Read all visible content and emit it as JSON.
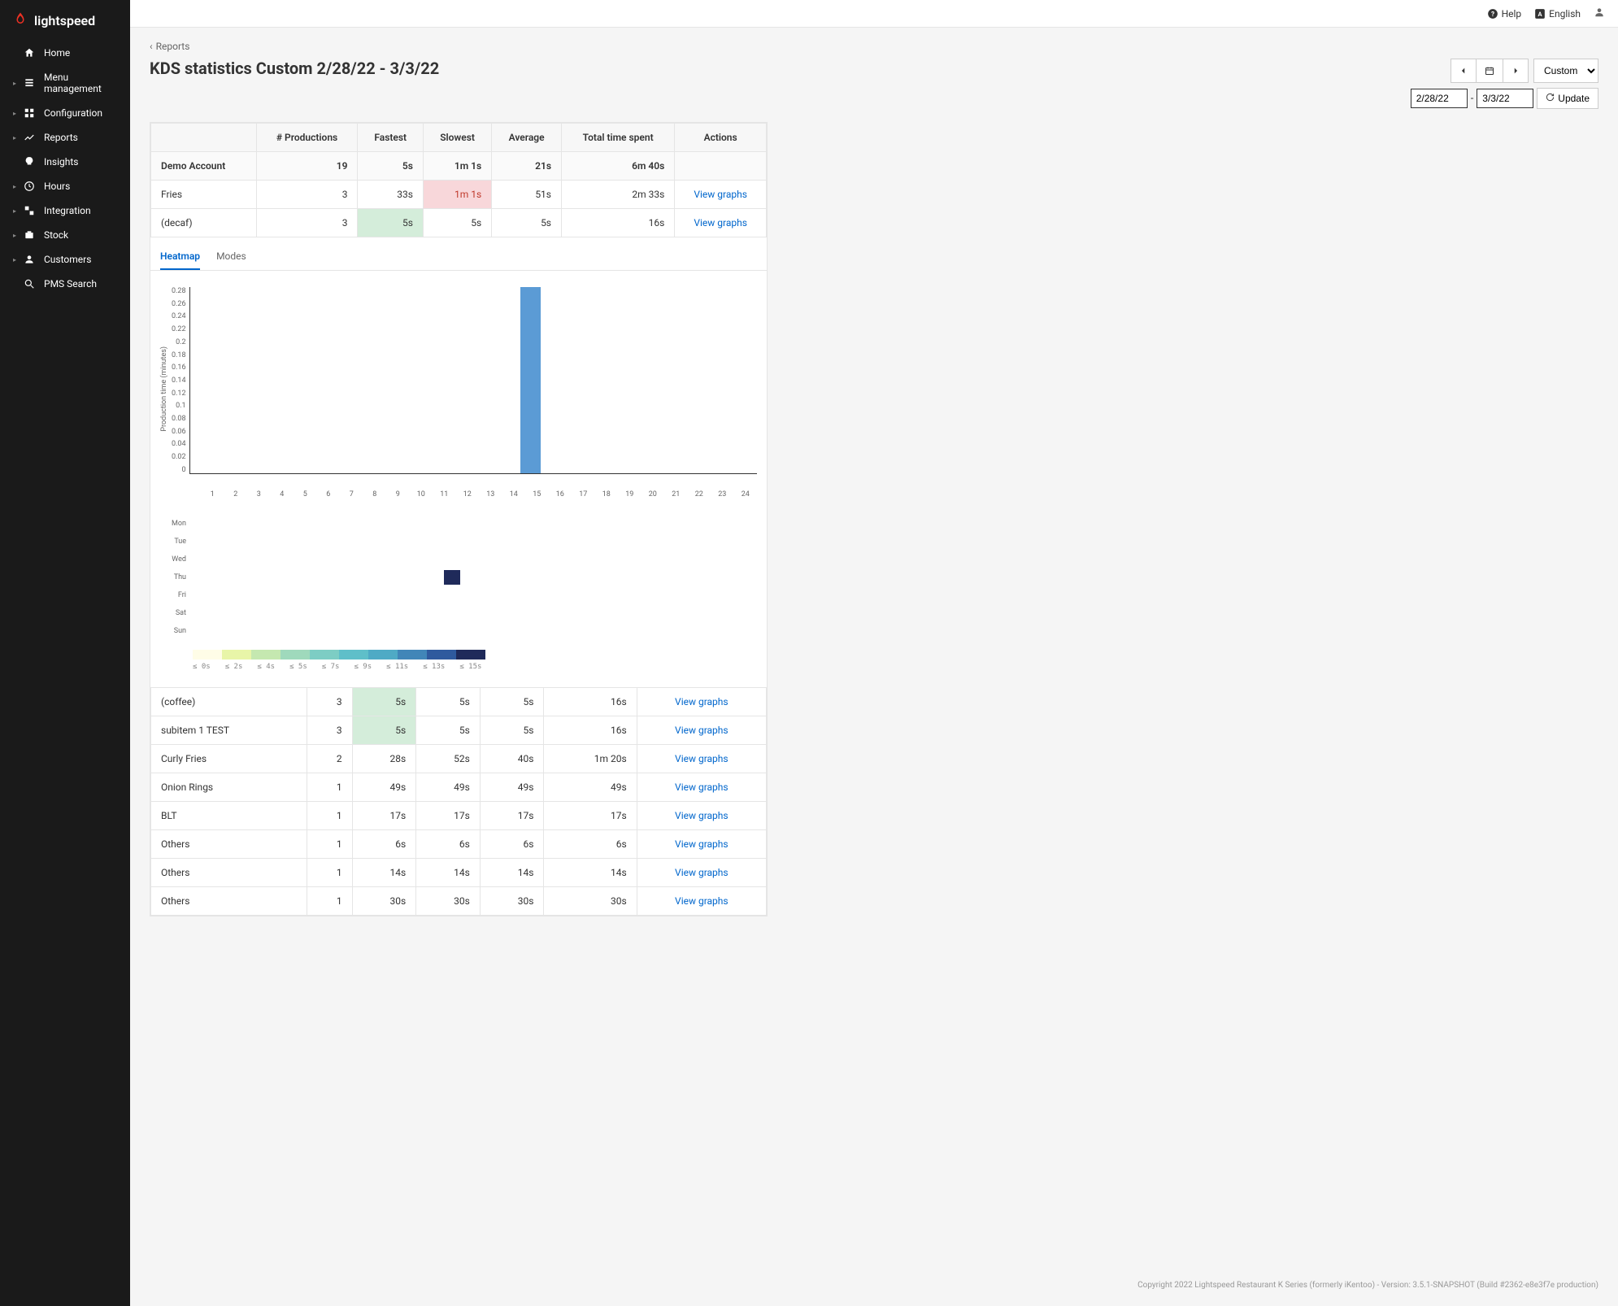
{
  "brand": "lightspeed",
  "topbar": {
    "help": "Help",
    "language": "English"
  },
  "sidebar": {
    "items": [
      {
        "icon": "home",
        "label": "Home",
        "caret": false
      },
      {
        "icon": "menu",
        "label": "Menu management",
        "caret": true
      },
      {
        "icon": "config",
        "label": "Configuration",
        "caret": true
      },
      {
        "icon": "reports",
        "label": "Reports",
        "caret": true
      },
      {
        "icon": "insights",
        "label": "Insights",
        "caret": false
      },
      {
        "icon": "hours",
        "label": "Hours",
        "caret": true
      },
      {
        "icon": "integration",
        "label": "Integration",
        "caret": true
      },
      {
        "icon": "stock",
        "label": "Stock",
        "caret": true
      },
      {
        "icon": "customers",
        "label": "Customers",
        "caret": true
      },
      {
        "icon": "search",
        "label": "PMS Search",
        "caret": false
      }
    ]
  },
  "breadcrumb": "Reports",
  "page_title": "KDS statistics Custom 2/28/22 - 3/3/22",
  "date_picker": {
    "from": "2/28/22",
    "to": "3/3/22",
    "range_label": "Custom",
    "update": "Update"
  },
  "table": {
    "columns": [
      "",
      "# Productions",
      "Fastest",
      "Slowest",
      "Average",
      "Total time spent",
      "Actions"
    ],
    "summary": {
      "name": "Demo Account",
      "productions": "19",
      "fastest": "5s",
      "slowest": "1m 1s",
      "average": "21s",
      "total": "6m 40s"
    },
    "rows_top": [
      {
        "name": "Fries",
        "productions": "3",
        "fastest": "33s",
        "slowest": "1m 1s",
        "average": "51s",
        "total": "2m 33s",
        "action": "View graphs",
        "slowest_bad": true
      },
      {
        "name": "(decaf)",
        "productions": "3",
        "fastest": "5s",
        "slowest": "5s",
        "average": "5s",
        "total": "16s",
        "action": "View graphs",
        "fastest_good": true
      }
    ],
    "rows_bottom": [
      {
        "name": "(coffee)",
        "productions": "3",
        "fastest": "5s",
        "slowest": "5s",
        "average": "5s",
        "total": "16s",
        "action": "View graphs",
        "fastest_good": true
      },
      {
        "name": "subitem 1 TEST",
        "productions": "3",
        "fastest": "5s",
        "slowest": "5s",
        "average": "5s",
        "total": "16s",
        "action": "View graphs",
        "fastest_good": true
      },
      {
        "name": "Curly Fries",
        "productions": "2",
        "fastest": "28s",
        "slowest": "52s",
        "average": "40s",
        "total": "1m 20s",
        "action": "View graphs"
      },
      {
        "name": "Onion Rings",
        "productions": "1",
        "fastest": "49s",
        "slowest": "49s",
        "average": "49s",
        "total": "49s",
        "action": "View graphs"
      },
      {
        "name": "BLT",
        "productions": "1",
        "fastest": "17s",
        "slowest": "17s",
        "average": "17s",
        "total": "17s",
        "action": "View graphs"
      },
      {
        "name": "Others",
        "productions": "1",
        "fastest": "6s",
        "slowest": "6s",
        "average": "6s",
        "total": "6s",
        "action": "View graphs"
      },
      {
        "name": "Others",
        "productions": "1",
        "fastest": "14s",
        "slowest": "14s",
        "average": "14s",
        "total": "14s",
        "action": "View graphs"
      },
      {
        "name": "Others",
        "productions": "1",
        "fastest": "30s",
        "slowest": "30s",
        "average": "30s",
        "total": "30s",
        "action": "View graphs"
      }
    ]
  },
  "tabs": {
    "heatmap": "Heatmap",
    "modes": "Modes",
    "active": "heatmap"
  },
  "barchart": {
    "type": "bar",
    "y_label": "Production time (minutes)",
    "y_ticks": [
      "0.28",
      "0.26",
      "0.24",
      "0.22",
      "0.2",
      "0.18",
      "0.16",
      "0.14",
      "0.12",
      "0.1",
      "0.08",
      "0.06",
      "0.04",
      "0.02",
      "0"
    ],
    "x_ticks": [
      "1",
      "2",
      "3",
      "4",
      "5",
      "6",
      "7",
      "8",
      "9",
      "10",
      "11",
      "12",
      "13",
      "14",
      "15",
      "16",
      "17",
      "18",
      "19",
      "20",
      "21",
      "22",
      "23",
      "24"
    ],
    "ylim": [
      0,
      0.28
    ],
    "bars": [
      {
        "x": 15,
        "value": 0.28,
        "color": "#5b9bd5"
      }
    ],
    "background_color": "#ffffff",
    "axis_color": "#333333",
    "tick_fontsize": 9
  },
  "heatmap": {
    "type": "heatmap",
    "days": [
      "Mon",
      "Tue",
      "Wed",
      "Thu",
      "Fri",
      "Sat",
      "Sun"
    ],
    "hours": 24,
    "cells": [
      {
        "day": "Thu",
        "hour": 15,
        "color": "#1f2a5a"
      }
    ],
    "legend_colors": [
      "#fffde7",
      "#e8f5a8",
      "#c5e8b0",
      "#9fd9bc",
      "#7dcdc4",
      "#5fbfc9",
      "#4faac5",
      "#4186b8",
      "#2f5a9e",
      "#1f2a5a"
    ],
    "legend_labels": [
      "≤ 0s",
      "≤ 2s",
      "≤ 4s",
      "≤ 5s",
      "≤ 7s",
      "≤ 9s",
      "≤ 11s",
      "≤ 13s",
      "≤ 15s"
    ]
  },
  "footer": "Copyright 2022 Lightspeed Restaurant K Series (formerly iKentoo) - Version: 3.5.1-SNAPSHOT (Build #2362-e8e3f7e production)"
}
